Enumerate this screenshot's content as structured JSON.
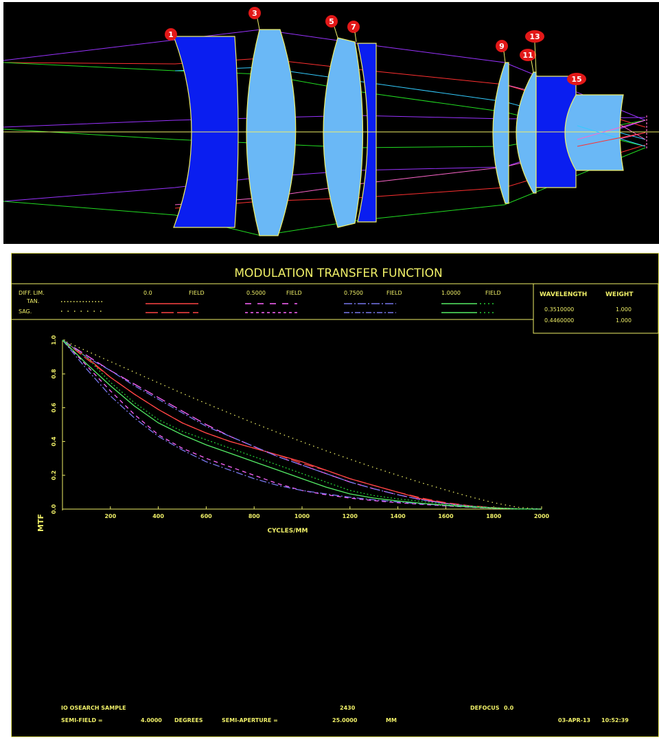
{
  "lens_labels": [
    "1",
    "3",
    "5",
    "7",
    "9",
    "11",
    "13",
    "15"
  ],
  "colors": {
    "yellow": "#f0f068",
    "glass_light": "#6ab8f6",
    "glass_dark": "#0a1ef0",
    "marker": "#e21818",
    "ray_purple": "#9933ff",
    "ray_red": "#ff3030",
    "ray_green": "#22dd22",
    "ray_cyan": "#33ccff",
    "ray_pink": "#ff66cc",
    "tan_field0": "#ff4444",
    "field05": "#ff66ff",
    "field075": "#7777ee",
    "field10": "#55ee66",
    "diff": "#f0f068"
  },
  "chart_data": {
    "type": "line",
    "title": "MODULATION TRANSFER FUNCTION",
    "xlabel": "CYCLES/MM",
    "ylabel": "MTF",
    "xlim": [
      0,
      2000
    ],
    "ylim": [
      0,
      1.0
    ],
    "x_ticks": [
      "200",
      "400",
      "600",
      "800",
      "1000",
      "1200",
      "1400",
      "1600",
      "1800",
      "2000"
    ],
    "y_ticks": [
      "0.0",
      "0.2",
      "0.4",
      "0.6",
      "0.8",
      "1.0"
    ],
    "x": [
      0,
      100,
      200,
      300,
      400,
      500,
      600,
      700,
      800,
      900,
      1000,
      1100,
      1200,
      1300,
      1400,
      1500,
      1600,
      1700,
      1800,
      1900,
      2000
    ],
    "legend": {
      "diff_label": "DIFF. LIM.",
      "tan_label": "TAN.",
      "sag_label": "SAG.",
      "fields": [
        {
          "value": "0.0",
          "label": "FIELD"
        },
        {
          "value": "0.5000",
          "label": "FIELD"
        },
        {
          "value": "0.7500",
          "label": "FIELD"
        },
        {
          "value": "1.0000",
          "label": "FIELD"
        }
      ]
    },
    "wavelength_table": {
      "header_wl": "WAVELENGTH",
      "header_wt": "WEIGHT",
      "rows": [
        {
          "wl": "0.3510000",
          "wt": "1.000"
        },
        {
          "wl": "0.4460000",
          "wt": "1.000"
        }
      ]
    },
    "series": [
      {
        "name": "DIFF. LIM.",
        "style": "dotted-fine",
        "color": "#f0f068",
        "values": [
          1.0,
          0.936,
          0.873,
          0.81,
          0.747,
          0.685,
          0.625,
          0.566,
          0.508,
          0.452,
          0.398,
          0.345,
          0.295,
          0.246,
          0.2,
          0.155,
          0.113,
          0.073,
          0.038,
          0.011,
          0.0
        ]
      },
      {
        "name": "TAN. 0.0 FIELD",
        "style": "solid",
        "color": "#ff4444",
        "values": [
          1.0,
          0.9,
          0.78,
          0.68,
          0.59,
          0.51,
          0.45,
          0.4,
          0.36,
          0.32,
          0.28,
          0.23,
          0.18,
          0.14,
          0.1,
          0.06,
          0.035,
          0.018,
          0.008,
          0.002,
          0.0
        ]
      },
      {
        "name": "SAG. 0.0 FIELD",
        "style": "dashed",
        "color": "#ff4444",
        "values": [
          1.0,
          0.89,
          0.78,
          0.68,
          0.59,
          0.51,
          0.45,
          0.4,
          0.36,
          0.32,
          0.27,
          0.23,
          0.18,
          0.14,
          0.1,
          0.065,
          0.038,
          0.02,
          0.009,
          0.002,
          0.0
        ]
      },
      {
        "name": "TAN. 0.5000 FIELD",
        "style": "dashed",
        "color": "#ff66ff",
        "values": [
          1.0,
          0.91,
          0.82,
          0.74,
          0.66,
          0.58,
          0.5,
          0.43,
          0.37,
          0.31,
          0.26,
          0.21,
          0.16,
          0.12,
          0.085,
          0.055,
          0.032,
          0.016,
          0.006,
          0.002,
          0.0
        ]
      },
      {
        "name": "SAG. 0.5000 FIELD",
        "style": "dashed-fine",
        "color": "#ff66ff",
        "values": [
          1.0,
          0.85,
          0.7,
          0.56,
          0.44,
          0.36,
          0.3,
          0.25,
          0.2,
          0.15,
          0.11,
          0.085,
          0.065,
          0.05,
          0.038,
          0.028,
          0.019,
          0.011,
          0.005,
          0.001,
          0.0
        ]
      },
      {
        "name": "TAN. 0.7500 FIELD",
        "style": "dash-dot",
        "color": "#7777ee",
        "values": [
          1.0,
          0.9,
          0.82,
          0.73,
          0.65,
          0.57,
          0.49,
          0.43,
          0.37,
          0.31,
          0.26,
          0.21,
          0.16,
          0.12,
          0.085,
          0.055,
          0.033,
          0.017,
          0.007,
          0.002,
          0.0
        ]
      },
      {
        "name": "SAG. 0.7500 FIELD",
        "style": "dash-dot",
        "color": "#7777ee",
        "values": [
          1.0,
          0.83,
          0.67,
          0.54,
          0.43,
          0.35,
          0.28,
          0.23,
          0.18,
          0.14,
          0.11,
          0.09,
          0.07,
          0.055,
          0.042,
          0.031,
          0.021,
          0.012,
          0.005,
          0.001,
          0.0
        ]
      },
      {
        "name": "TAN. 1.0000 FIELD",
        "style": "solid",
        "color": "#55ee66",
        "values": [
          1.0,
          0.86,
          0.73,
          0.61,
          0.51,
          0.44,
          0.38,
          0.33,
          0.28,
          0.23,
          0.18,
          0.13,
          0.09,
          0.065,
          0.048,
          0.034,
          0.023,
          0.013,
          0.006,
          0.001,
          0.0
        ]
      },
      {
        "name": "SAG. 1.0000 FIELD",
        "style": "dotted",
        "color": "#22cc33",
        "values": [
          1.0,
          0.9,
          0.75,
          0.63,
          0.53,
          0.46,
          0.41,
          0.36,
          0.31,
          0.26,
          0.21,
          0.16,
          0.11,
          0.08,
          0.06,
          0.045,
          0.03,
          0.018,
          0.008,
          0.002,
          0.0
        ]
      }
    ]
  },
  "footer": {
    "sample": "IO OSEARCH SAMPLE",
    "number": "2430",
    "defocus_label": "DEFOCUS",
    "defocus_value": "0.0",
    "semi_field_label": "SEMI-FIELD =",
    "semi_field_value": "4.0000",
    "degrees": "DEGREES",
    "semi_aperture_label": "SEMI-APERTURE =",
    "semi_aperture_value": "25.0000",
    "mm": "MM",
    "date": "03-APR-13",
    "time": "10:52:39"
  }
}
